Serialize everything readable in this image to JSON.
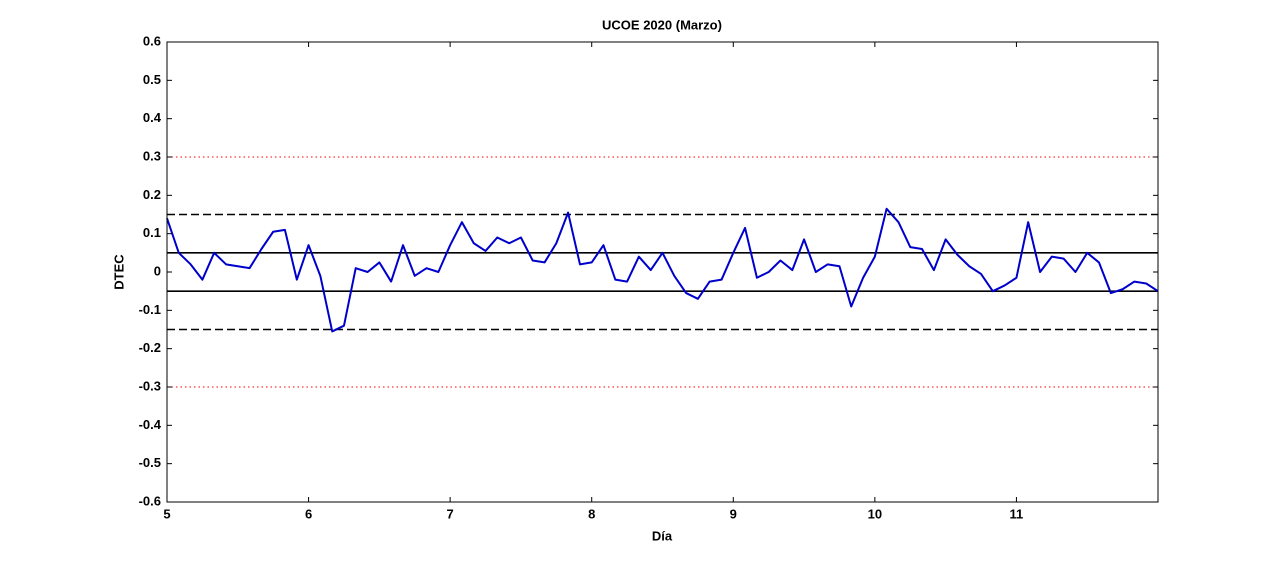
{
  "chart_data": {
    "type": "line",
    "title": "UCOE 2020 (Marzo)",
    "x_label": "Día",
    "y_label": "DTEC",
    "color": "#0000cc",
    "xlim": [
      5,
      12
    ],
    "xticks": [
      5,
      6,
      7,
      8,
      9,
      10,
      11
    ],
    "ylim": [
      -0.6,
      0.6
    ],
    "yticks": [
      0.6,
      0.5,
      0.4,
      0.3,
      0.2,
      0.1,
      0,
      -0.1,
      -0.2,
      -0.3,
      -0.4,
      -0.5,
      -0.6
    ],
    "reference_lines": [
      {
        "value": 0.3,
        "style": "dotted",
        "color": "#ff0000"
      },
      {
        "value": -0.3,
        "style": "dotted",
        "color": "#ff0000"
      },
      {
        "value": 0.15,
        "style": "dashed",
        "color": "#000000"
      },
      {
        "value": -0.15,
        "style": "dashed",
        "color": "#000000"
      },
      {
        "value": 0.05,
        "style": "solid",
        "color": "#000000"
      },
      {
        "value": -0.05,
        "style": "solid",
        "color": "#000000"
      }
    ],
    "x": [
      5,
      5.083,
      5.167,
      5.25,
      5.333,
      5.417,
      5.5,
      5.583,
      5.667,
      5.75,
      5.833,
      5.917,
      6,
      6.083,
      6.167,
      6.25,
      6.333,
      6.417,
      6.5,
      6.583,
      6.667,
      6.75,
      6.833,
      6.917,
      7,
      7.083,
      7.167,
      7.25,
      7.333,
      7.417,
      7.5,
      7.583,
      7.667,
      7.75,
      7.833,
      7.917,
      8,
      8.083,
      8.167,
      8.25,
      8.333,
      8.417,
      8.5,
      8.583,
      8.667,
      8.75,
      8.833,
      8.917,
      9,
      9.083,
      9.167,
      9.25,
      9.333,
      9.417,
      9.5,
      9.583,
      9.667,
      9.75,
      9.833,
      9.917,
      10,
      10.083,
      10.167,
      10.25,
      10.333,
      10.417,
      10.5,
      10.583,
      10.667,
      10.75,
      10.833,
      10.917,
      11,
      11.083,
      11.167,
      11.25,
      11.333,
      11.417,
      11.5,
      11.583,
      11.667,
      11.75,
      11.833,
      11.917,
      12
    ],
    "values": [
      0.14,
      0.05,
      0.02,
      -0.02,
      0.05,
      0.02,
      0.015,
      0.01,
      0.06,
      0.105,
      0.11,
      -0.02,
      0.07,
      -0.01,
      -0.155,
      -0.14,
      0.01,
      0.0,
      0.025,
      -0.025,
      0.07,
      -0.01,
      0.01,
      0.0,
      0.07,
      0.13,
      0.075,
      0.055,
      0.09,
      0.075,
      0.09,
      0.03,
      0.025,
      0.075,
      0.155,
      0.02,
      0.025,
      0.07,
      -0.02,
      -0.025,
      0.04,
      0.005,
      0.05,
      -0.01,
      -0.055,
      -0.07,
      -0.025,
      -0.02,
      0.05,
      0.115,
      -0.015,
      0.0,
      0.03,
      0.005,
      0.085,
      0.0,
      0.02,
      0.015,
      -0.09,
      -0.015,
      0.04,
      0.165,
      0.13,
      0.065,
      0.06,
      0.005,
      0.085,
      0.045,
      0.015,
      -0.005,
      -0.05,
      -0.035,
      -0.015,
      0.13,
      0.0,
      0.04,
      0.035,
      0.0,
      0.05,
      0.025,
      -0.055,
      -0.045,
      -0.025,
      -0.03,
      -0.05
    ]
  }
}
